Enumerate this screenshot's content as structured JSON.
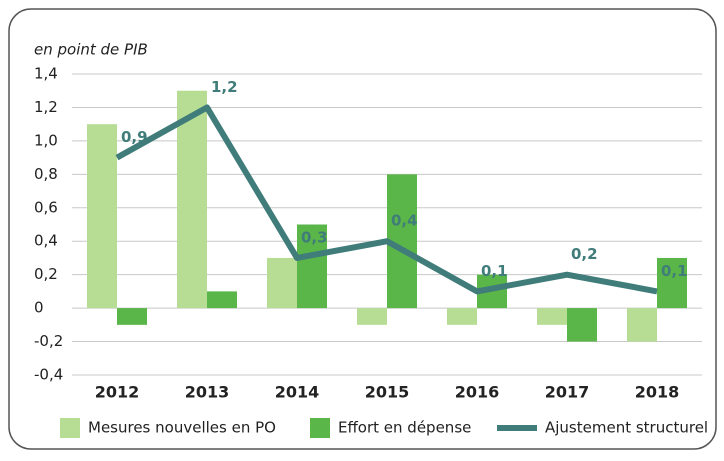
{
  "chart_data": {
    "type": "bar_line",
    "subtitle": "en point de PIB",
    "categories": [
      "2012",
      "2013",
      "2014",
      "2015",
      "2016",
      "2017",
      "2018"
    ],
    "series": [
      {
        "name": "Mesures nouvelles en PO",
        "color": "#b7dd94",
        "type": "bar",
        "values": [
          1.1,
          1.3,
          0.3,
          -0.1,
          -0.1,
          -0.1,
          -0.2
        ]
      },
      {
        "name": "Effort en dépense",
        "color": "#5ab648",
        "type": "bar",
        "values": [
          -0.1,
          0.1,
          0.5,
          0.8,
          0.2,
          -0.2,
          0.3
        ]
      },
      {
        "name": "Ajustement structurel",
        "color": "#3f7c7a",
        "type": "line",
        "values": [
          0.9,
          1.2,
          0.3,
          0.4,
          0.1,
          0.2,
          0.1
        ],
        "value_labels": [
          "0,9",
          "1,2",
          "0,3",
          "0,4",
          "0,1",
          "0,2",
          "0,1"
        ]
      }
    ],
    "ylim": [
      -0.4,
      1.4
    ],
    "yticks": [
      {
        "value": -0.4,
        "label": "-0,4"
      },
      {
        "value": -0.2,
        "label": "-0,2"
      },
      0,
      {
        "value": 0.2,
        "label": "0,2"
      },
      {
        "value": 0.4,
        "label": "0,4"
      },
      {
        "value": 0.6,
        "label": "0,6"
      },
      {
        "value": 0.8,
        "label": "0,8"
      },
      {
        "value": 1.0,
        "label": "1,0"
      },
      {
        "value": 1.2,
        "label": "1,2"
      },
      {
        "value": 1.4,
        "label": "1,4"
      }
    ],
    "grid": true
  }
}
